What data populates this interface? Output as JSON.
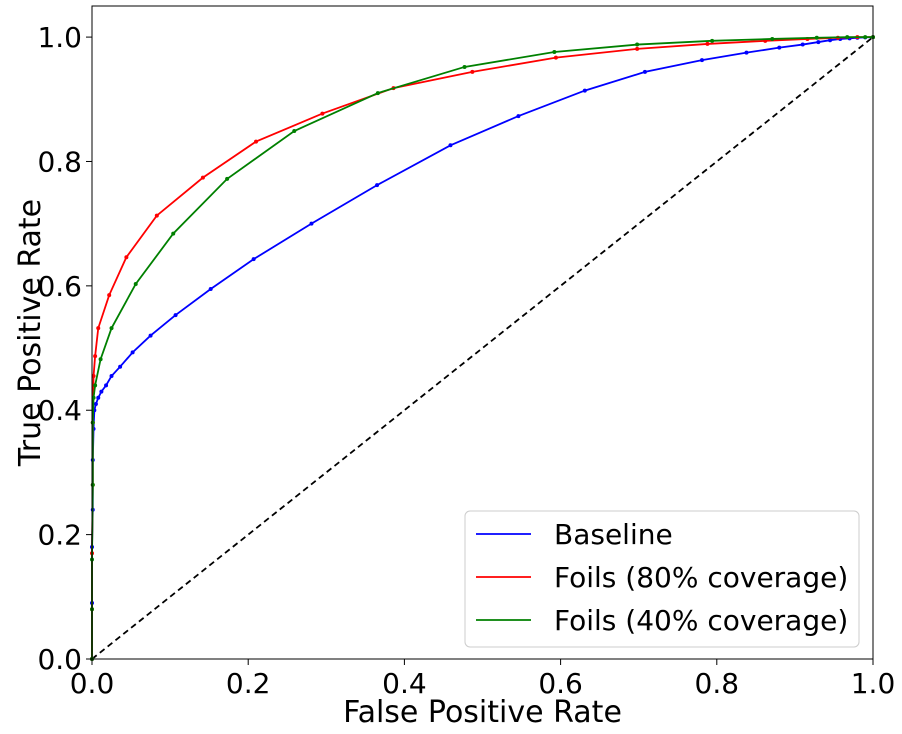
{
  "chart_data": {
    "type": "line",
    "title": "",
    "xlabel": "False Positive Rate",
    "ylabel": "True Positive Rate",
    "xlim": [
      0.0,
      1.0
    ],
    "ylim": [
      0.0,
      1.05
    ],
    "xticks": [
      "0.0",
      "0.2",
      "0.4",
      "0.6",
      "0.8",
      "1.0"
    ],
    "yticks": [
      "0.0",
      "0.2",
      "0.4",
      "0.6",
      "0.8",
      "1.0"
    ],
    "grid": false,
    "legend_position": "lower-right",
    "reference_line": {
      "style": "dashed",
      "color": "#000000",
      "points": [
        [
          0,
          0
        ],
        [
          1,
          1
        ]
      ]
    },
    "series": [
      {
        "name": "Baseline",
        "color": "#0000ff",
        "points": [
          [
            0.0,
            0.0
          ],
          [
            0.0,
            0.09
          ],
          [
            0.0,
            0.18
          ],
          [
            0.001,
            0.24
          ],
          [
            0.001,
            0.32
          ],
          [
            0.002,
            0.37
          ],
          [
            0.003,
            0.4
          ],
          [
            0.005,
            0.41
          ],
          [
            0.008,
            0.42
          ],
          [
            0.012,
            0.43
          ],
          [
            0.018,
            0.44
          ],
          [
            0.025,
            0.455
          ],
          [
            0.036,
            0.47
          ],
          [
            0.052,
            0.493
          ],
          [
            0.075,
            0.52
          ],
          [
            0.107,
            0.553
          ],
          [
            0.152,
            0.595
          ],
          [
            0.207,
            0.643
          ],
          [
            0.281,
            0.7
          ],
          [
            0.365,
            0.762
          ],
          [
            0.459,
            0.826
          ],
          [
            0.546,
            0.873
          ],
          [
            0.631,
            0.914
          ],
          [
            0.708,
            0.944
          ],
          [
            0.781,
            0.963
          ],
          [
            0.838,
            0.975
          ],
          [
            0.88,
            0.983
          ],
          [
            0.91,
            0.988
          ],
          [
            0.93,
            0.992
          ],
          [
            0.945,
            0.995
          ],
          [
            0.958,
            0.997
          ],
          [
            0.97,
            0.998
          ],
          [
            0.98,
            0.999
          ],
          [
            0.99,
            0.9995
          ],
          [
            1.0,
            1.0
          ]
        ]
      },
      {
        "name": "Foils (80% coverage)",
        "color": "#ff0000",
        "points": [
          [
            0.0,
            0.0
          ],
          [
            0.0,
            0.08
          ],
          [
            0.0,
            0.17
          ],
          [
            0.001,
            0.28
          ],
          [
            0.001,
            0.38
          ],
          [
            0.002,
            0.455
          ],
          [
            0.004,
            0.487
          ],
          [
            0.008,
            0.532
          ],
          [
            0.022,
            0.585
          ],
          [
            0.044,
            0.646
          ],
          [
            0.083,
            0.713
          ],
          [
            0.142,
            0.774
          ],
          [
            0.21,
            0.832
          ],
          [
            0.295,
            0.877
          ],
          [
            0.386,
            0.918
          ],
          [
            0.487,
            0.944
          ],
          [
            0.594,
            0.967
          ],
          [
            0.698,
            0.981
          ],
          [
            0.788,
            0.989
          ],
          [
            0.862,
            0.994
          ],
          [
            0.916,
            0.997
          ],
          [
            0.955,
            0.999
          ],
          [
            0.98,
            1.0
          ],
          [
            1.0,
            1.0
          ]
        ]
      },
      {
        "name": "Foils (40% coverage)",
        "color": "#008000",
        "points": [
          [
            0.0,
            0.0
          ],
          [
            0.0,
            0.08
          ],
          [
            0.0,
            0.16
          ],
          [
            0.001,
            0.28
          ],
          [
            0.001,
            0.38
          ],
          [
            0.002,
            0.42
          ],
          [
            0.004,
            0.44
          ],
          [
            0.011,
            0.482
          ],
          [
            0.025,
            0.532
          ],
          [
            0.056,
            0.603
          ],
          [
            0.104,
            0.684
          ],
          [
            0.173,
            0.772
          ],
          [
            0.259,
            0.849
          ],
          [
            0.366,
            0.91
          ],
          [
            0.477,
            0.952
          ],
          [
            0.592,
            0.976
          ],
          [
            0.698,
            0.988
          ],
          [
            0.794,
            0.994
          ],
          [
            0.871,
            0.997
          ],
          [
            0.928,
            0.999
          ],
          [
            0.967,
            1.0
          ],
          [
            0.99,
            1.0
          ],
          [
            1.0,
            1.0
          ]
        ]
      }
    ]
  }
}
